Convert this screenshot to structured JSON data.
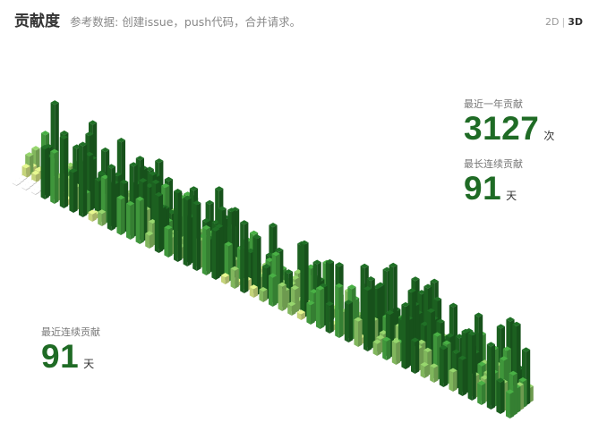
{
  "header": {
    "title": "贡献度",
    "subtitle": "参考数据: 创建issue，push代码，合并请求。"
  },
  "view_toggle": {
    "option_2d": "2D",
    "separator": "|",
    "option_3d": "3D",
    "selected": "3D"
  },
  "stats": {
    "year_total": {
      "label": "最近一年贡献",
      "value": "3127",
      "unit": "次"
    },
    "longest_streak": {
      "label": "最长连续贡献",
      "value": "91",
      "unit": "天"
    },
    "current_streak": {
      "label": "最近连续贡献",
      "value": "91",
      "unit": "天"
    }
  },
  "colors": {
    "level0": "#eeeeee",
    "level1": "#d6e685",
    "level2": "#8cc665",
    "level3": "#44a340",
    "level4": "#1e6823",
    "accent": "#1f6b25"
  }
}
